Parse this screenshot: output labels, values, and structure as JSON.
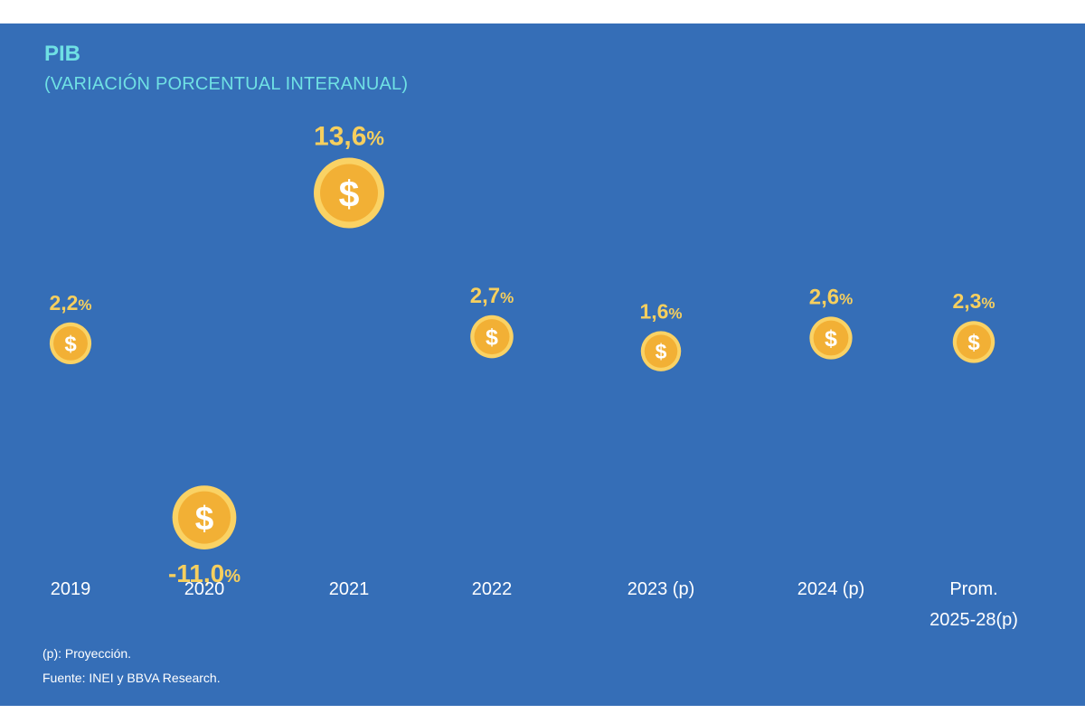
{
  "title": "PIB",
  "subtitle": "(VARIACIÓN PORCENTUAL INTERANUAL)",
  "footnote": "(p): Proyección.",
  "source": "Fuente: INEI y BBVA Research.",
  "colors": {
    "background": "#356eb7",
    "title": "#6fe0e4",
    "value_label": "#f6cf5e",
    "coin_outer": "#fad264",
    "coin_inner": "#f2b035",
    "category_label": "#ffffff"
  },
  "icon": "dollar-coin-icon",
  "chart_data": {
    "type": "scatter",
    "title": "PIB",
    "subtitle": "(VARIACIÓN PORCENTUAL INTERANUAL)",
    "xlabel": "",
    "ylabel": "",
    "categories": [
      "2019",
      "2020",
      "2021",
      "2022",
      "2023 (p)",
      "2024 (p)",
      "Prom. 2025-28(p)"
    ],
    "category_lines": [
      [
        "2019"
      ],
      [
        "2020"
      ],
      [
        "2021"
      ],
      [
        "2022"
      ],
      [
        "2023 (p)"
      ],
      [
        "2024 (p)"
      ],
      [
        "Prom.",
        "2025-28(p)"
      ]
    ],
    "values": [
      2.2,
      -11.0,
      13.6,
      2.7,
      1.6,
      2.6,
      2.3
    ],
    "value_labels": [
      "2,2",
      "-11,0",
      "13,6",
      "2,7",
      "1,6",
      "2,6",
      "2,3"
    ],
    "value_suffix": "%",
    "grid": false,
    "legend": "none"
  }
}
